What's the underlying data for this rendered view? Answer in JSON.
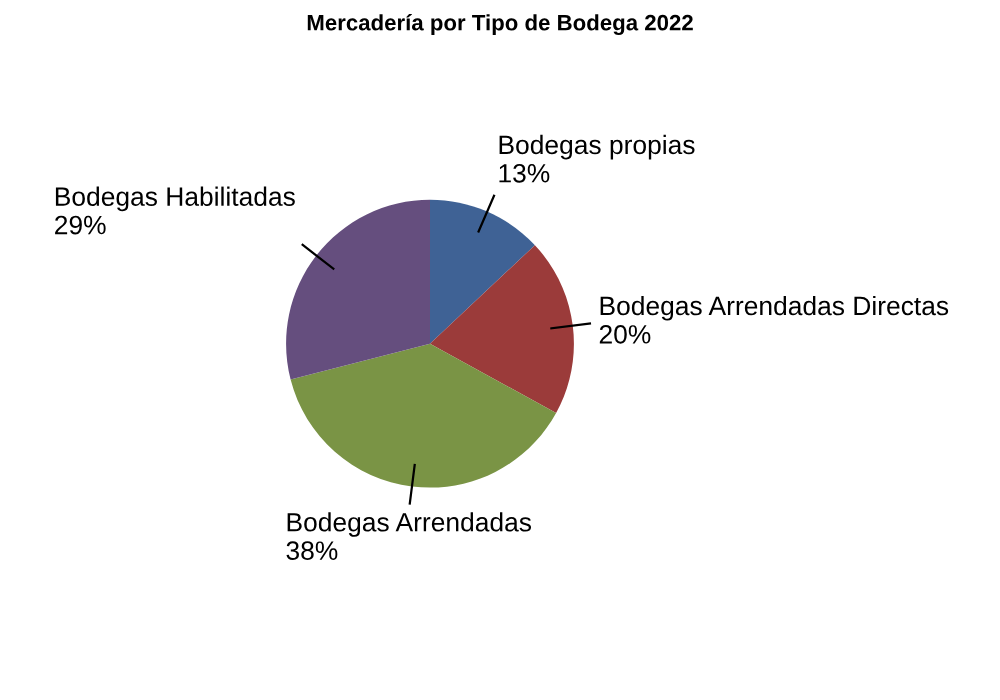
{
  "chart_data": {
    "type": "pie",
    "title": "Mercadería por Tipo de Bodega 2022",
    "categories": [
      "Bodegas propias",
      "Bodegas Arrendadas Directas",
      "Bodegas Arrendadas",
      "Bodegas Habilitadas"
    ],
    "values": [
      13,
      20,
      38,
      29
    ],
    "colors": [
      "#3f6295",
      "#9b3b3a",
      "#7a9445",
      "#654e7e"
    ],
    "value_labels": [
      "13%",
      "20%",
      "38%",
      "29%"
    ],
    "legend": false
  }
}
